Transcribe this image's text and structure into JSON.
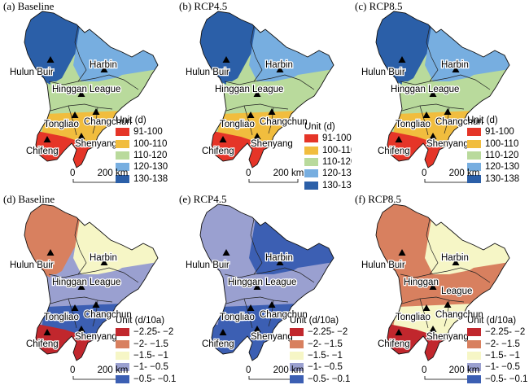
{
  "panels": [
    {
      "label": "(a) Baseline",
      "palette": "days",
      "zones": [
        "#2b5fa8",
        "#77aee0",
        "#b9da9c",
        "#f1bd3e",
        "#e53528"
      ],
      "cities": {
        "hulun": "Hulun Buir",
        "harbin": "Harbin",
        "hinggan": "Hinggan League",
        "changchun": "Changchun",
        "tongliao": "Tongliao",
        "chifeng": "Chifeng",
        "shenyang": "Shenyang"
      }
    },
    {
      "label": "(b) RCP4.5",
      "palette": "days",
      "zones": [
        "#2b5fa8",
        "#77aee0",
        "#b9da9c",
        "#f1bd3e",
        "#e53528"
      ],
      "cities": {
        "hulun": "Hulun Buir",
        "harbin": "Harbin",
        "hinggan": "Hinggan League",
        "changchun": "Changchun",
        "tongliao": "Tongliao",
        "chifeng": "Chifeng",
        "shenyang": "Shenyang"
      }
    },
    {
      "label": "(c) RCP8.5",
      "palette": "days",
      "zones": [
        "#2b5fa8",
        "#77aee0",
        "#b9da9c",
        "#f1bd3e",
        "#e53528"
      ],
      "cities": {
        "hulun": "Hulun Buir",
        "harbin": "Harbin",
        "hinggan": "Hinggan League",
        "changchun": "Changchun",
        "tongliao": "Tongliao",
        "chifeng": "Chifeng",
        "shenyang": "Shenyang"
      }
    },
    {
      "label": "(d) Baseline",
      "palette": "trend",
      "zones": [
        "#d8805f",
        "#f6f6c6",
        "#9aa0d0",
        "#3c5fb3",
        "#c1272d"
      ],
      "cities": {
        "hulun": "Hulun Buir",
        "harbin": "Harbin",
        "hinggan": "Hinggan League",
        "changchun": "Changchun",
        "tongliao": "Tongliao",
        "chifeng": "Chifeng",
        "shenyang": "Shenyang"
      }
    },
    {
      "label": "(e) RCP4.5",
      "palette": "trend",
      "zones": [
        "#9aa0d0",
        "#3c5fb3",
        "#9aa0d0",
        "#3c5fb3",
        "#3c5fb3"
      ],
      "cities": {
        "hulun": "Hulun Buir",
        "harbin": "Harbin",
        "hinggan": "Hinggan League",
        "changchun": "Changchun",
        "tongliao": "Tongliao",
        "chifeng": "Chifeng",
        "shenyang": "Shenyang"
      }
    },
    {
      "label": "(f) RCP8.5",
      "palette": "trend",
      "zones": [
        "#d8805f",
        "#f6f6c6",
        "#d8805f",
        "#f6f6c6",
        "#c1272d"
      ],
      "cities": {
        "hulun": "Hulun Buir",
        "harbin": "Harbin",
        "hinggan": "Hinggan",
        "hinggan2": "League",
        "changchun": "Changchun",
        "tongliao": "Tongliao",
        "chifeng": "Chifeng",
        "shenyang": "Shenyang"
      }
    }
  ],
  "legends": {
    "days": {
      "title": "Unit (d)",
      "items": [
        {
          "label": "91-100",
          "color": "#e53528"
        },
        {
          "label": "100-110",
          "color": "#f1bd3e"
        },
        {
          "label": "110-120",
          "color": "#b9da9c"
        },
        {
          "label": "120-130",
          "color": "#77aee0"
        },
        {
          "label": "130-138",
          "color": "#2b5fa8"
        }
      ]
    },
    "trend": {
      "title": "Unit (d/10a)",
      "items": [
        {
          "label": "−2.25- −2",
          "color": "#c1272d"
        },
        {
          "label": "−2- −1.5",
          "color": "#d8805f"
        },
        {
          "label": "−1.5- −1",
          "color": "#f6f6c6"
        },
        {
          "label": "−1- −0.5",
          "color": "#9aa0d0"
        },
        {
          "label": "−0.5- −0.1",
          "color": "#3c5fb3"
        }
      ]
    }
  },
  "scalebar": {
    "zero": "0",
    "distance": "200 km"
  }
}
